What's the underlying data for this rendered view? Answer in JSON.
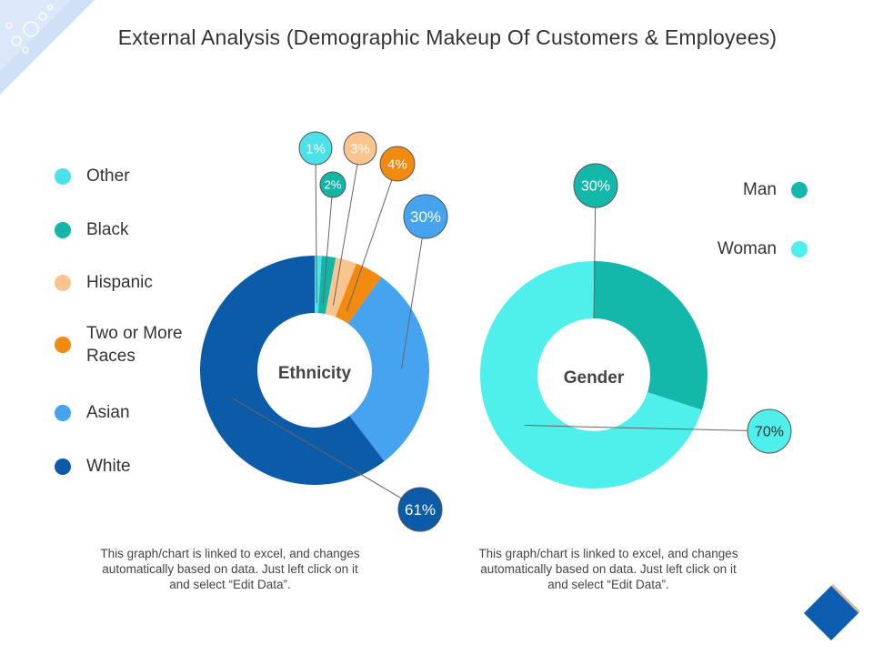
{
  "title": "External Analysis (Demographic Makeup Of Customers & Employees)",
  "notes": {
    "left": [
      "This graph/chart is linked to excel, and changes",
      "automatically based on data. Just left click on it",
      "and select “Edit Data”."
    ],
    "right": [
      "This graph/chart is linked to excel, and changes",
      "automatically based on data. Just left click on it",
      "and select “Edit Data”."
    ]
  },
  "chart_data": [
    {
      "type": "pie",
      "variant": "donut",
      "title": "Ethnicity",
      "categories": [
        "Other",
        "Black",
        "Hispanic",
        "Two or More Races",
        "Asian",
        "White"
      ],
      "values": [
        1,
        2,
        3,
        4,
        30,
        61
      ],
      "labels": [
        "1%",
        "2%",
        "3%",
        "4%",
        "30%",
        "61%"
      ],
      "colors": [
        "#4ce0e8",
        "#14b5a9",
        "#f9c48e",
        "#f28a10",
        "#46a3f0",
        "#0b5ba8"
      ],
      "legend_labels": [
        "Other",
        "Black",
        "Hispanic",
        "Two or More\nRaces",
        "Asian",
        "White"
      ],
      "legend": "left"
    },
    {
      "type": "pie",
      "variant": "donut",
      "title": "Gender",
      "categories": [
        "Man",
        "Woman"
      ],
      "values": [
        30,
        70
      ],
      "labels": [
        "30%",
        "70%"
      ],
      "colors": [
        "#14b8aa",
        "#4ff0ec"
      ],
      "legend": "top-right"
    }
  ],
  "colors": {
    "corner": "#c9dcf5",
    "diamond": "#0d5db0",
    "diamond_shadow": "#d9b89a",
    "callout_border": "#555555"
  }
}
